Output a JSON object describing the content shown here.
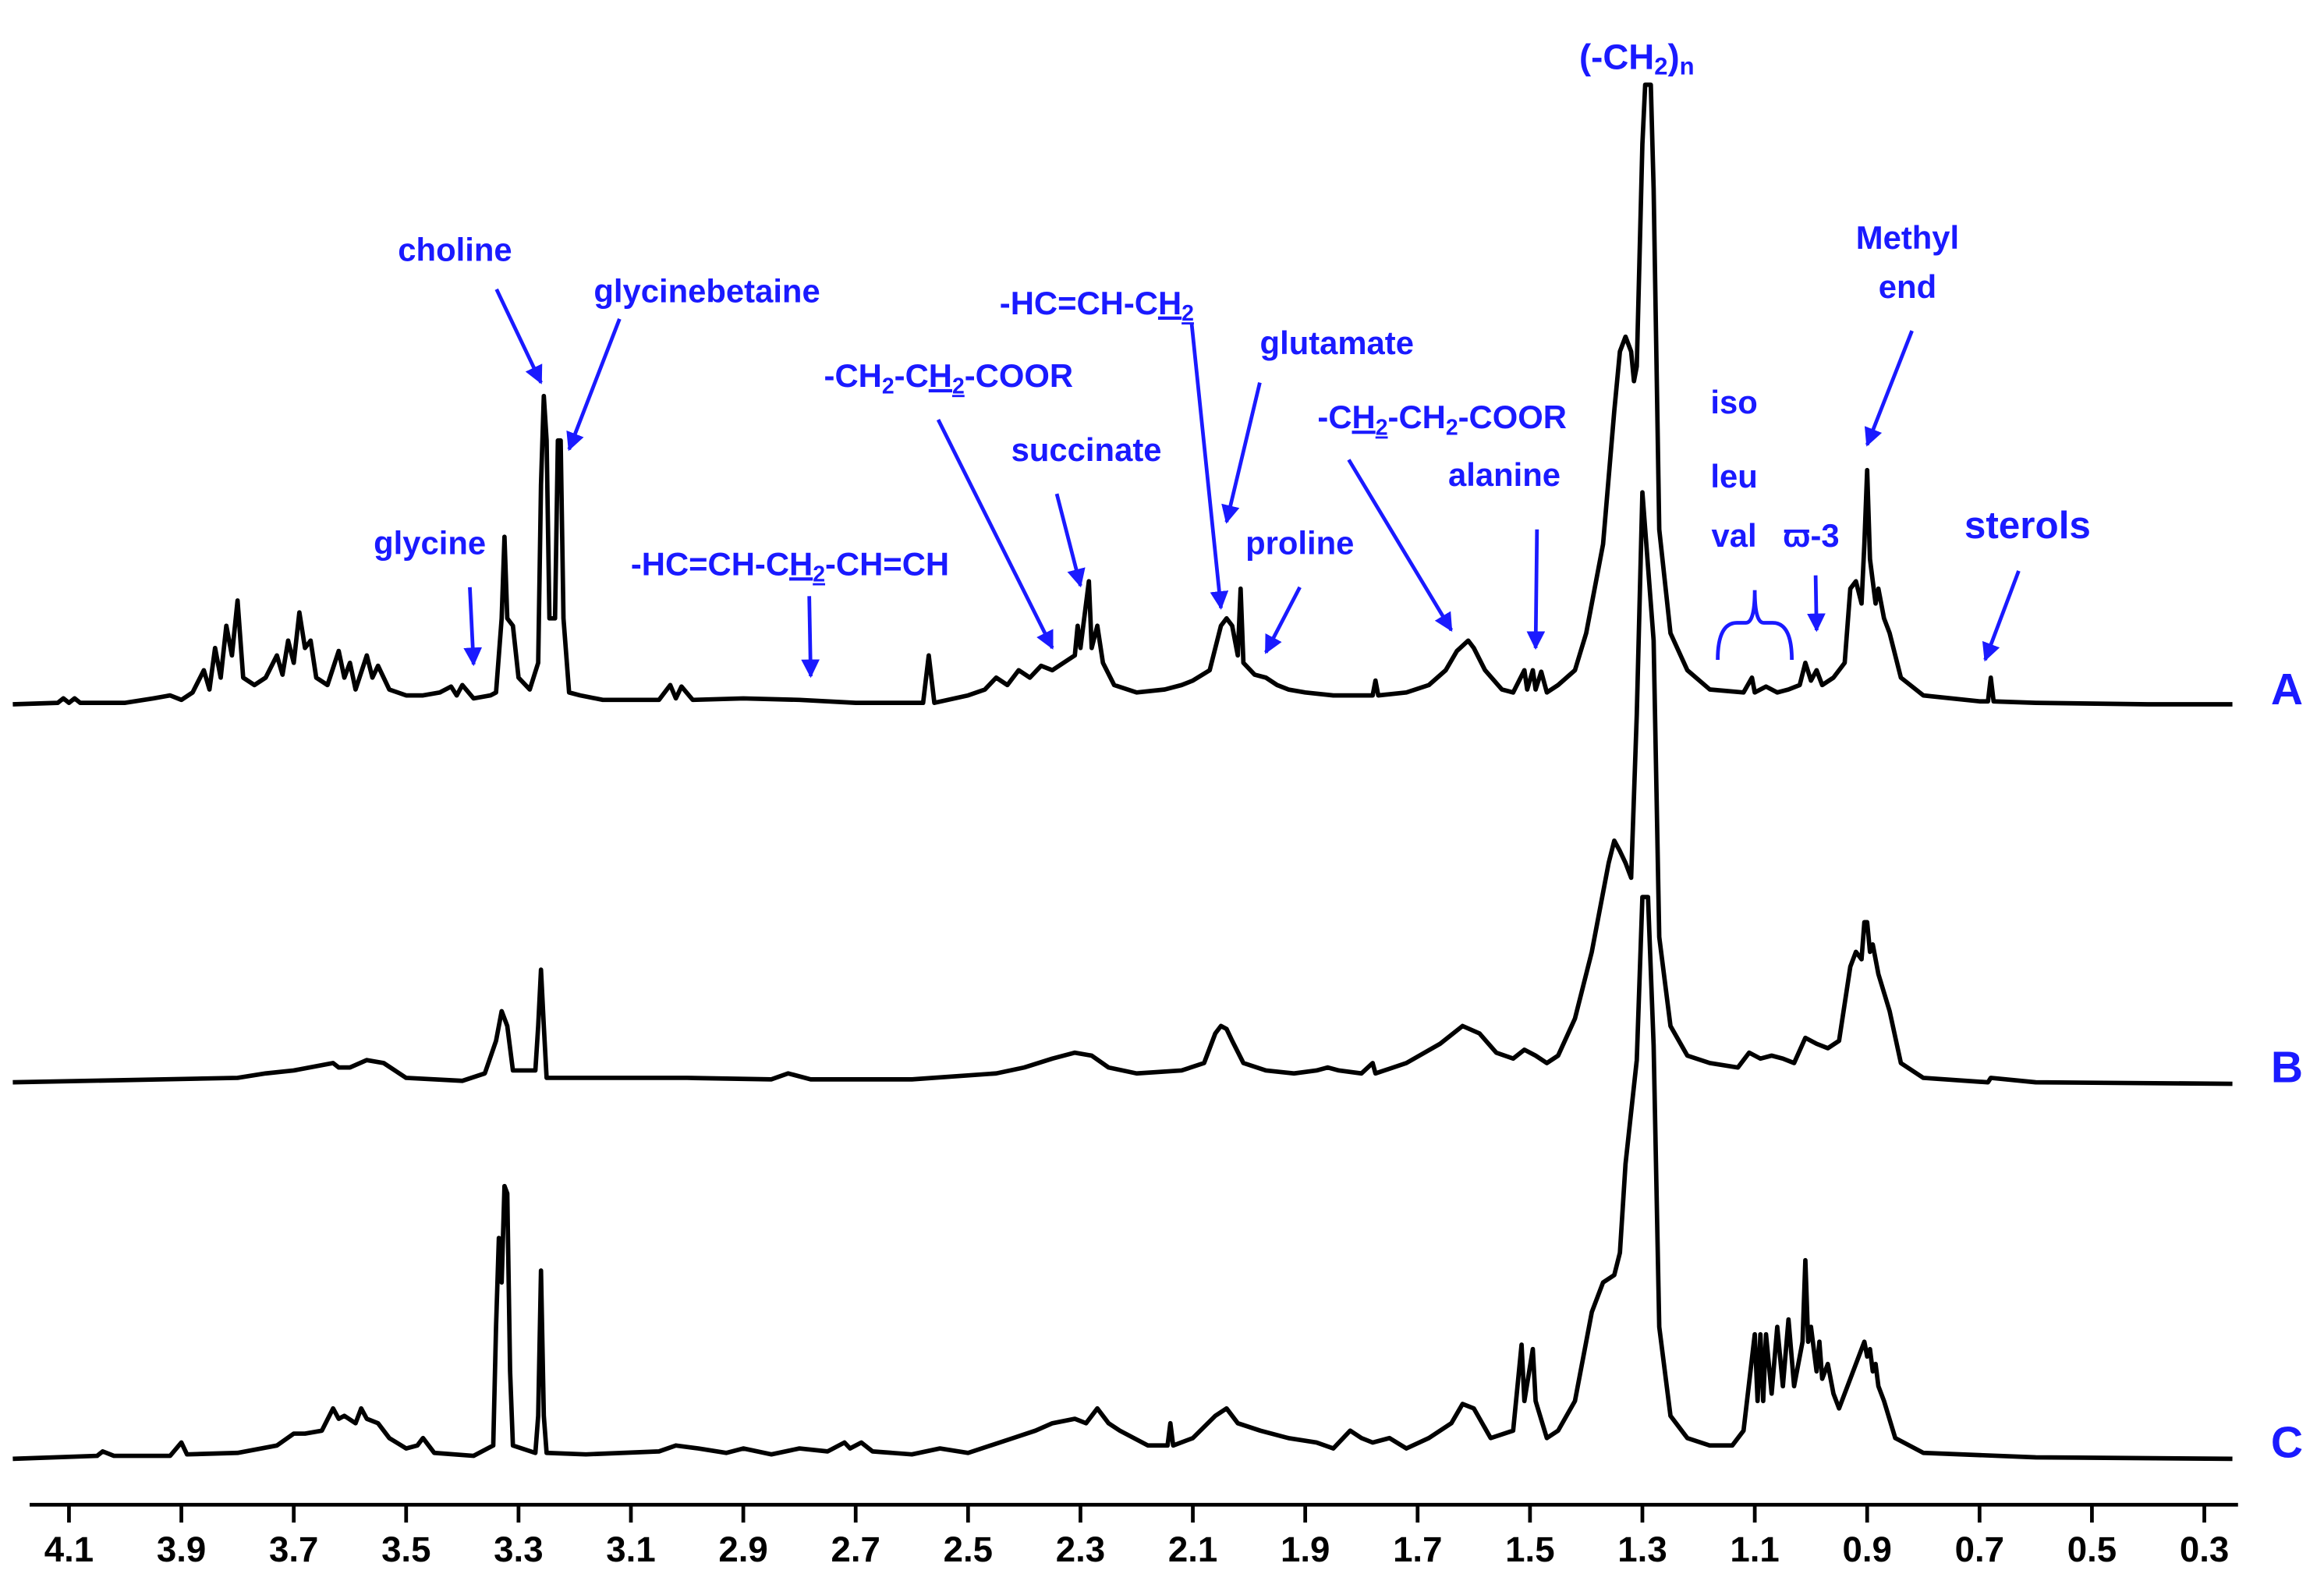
{
  "chart_data": {
    "type": "line",
    "xlim": [
      4.17,
      0.24
    ],
    "xticks": [
      4.1,
      3.9,
      3.7,
      3.5,
      3.3,
      3.1,
      2.9,
      2.7,
      2.5,
      2.3,
      2.1,
      1.9,
      1.7,
      1.5,
      1.3,
      1.1,
      0.9,
      0.7,
      0.5,
      0.3
    ],
    "ylim": [
      0,
      420
    ],
    "grid": false,
    "annotation_color": "#1a1aff",
    "series": [
      {
        "name": "A",
        "color": "#000000",
        "x": [
          4.2,
          4.12,
          4.11,
          4.1,
          4.09,
          4.08,
          4.0,
          3.95,
          3.92,
          3.9,
          3.88,
          3.86,
          3.85,
          3.84,
          3.83,
          3.82,
          3.81,
          3.8,
          3.79,
          3.77,
          3.75,
          3.73,
          3.72,
          3.71,
          3.7,
          3.69,
          3.68,
          3.67,
          3.66,
          3.64,
          3.62,
          3.61,
          3.6,
          3.59,
          3.57,
          3.56,
          3.55,
          3.53,
          3.5,
          3.47,
          3.44,
          3.42,
          3.41,
          3.4,
          3.38,
          3.35,
          3.34,
          3.33,
          3.325,
          3.32,
          3.31,
          3.3,
          3.28,
          3.265,
          3.26,
          3.255,
          3.25,
          3.245,
          3.235,
          3.23,
          3.225,
          3.22,
          3.21,
          3.19,
          3.15,
          3.05,
          3.03,
          3.02,
          3.01,
          2.99,
          2.9,
          2.8,
          2.7,
          2.58,
          2.57,
          2.56,
          2.5,
          2.47,
          2.45,
          2.43,
          2.41,
          2.39,
          2.37,
          2.35,
          2.33,
          2.31,
          2.305,
          2.3,
          2.285,
          2.28,
          2.27,
          2.26,
          2.24,
          2.2,
          2.15,
          2.12,
          2.1,
          2.07,
          2.05,
          2.04,
          2.03,
          2.02,
          2.015,
          2.01,
          1.99,
          1.97,
          1.95,
          1.93,
          1.9,
          1.85,
          1.8,
          1.78,
          1.775,
          1.77,
          1.72,
          1.68,
          1.65,
          1.63,
          1.61,
          1.6,
          1.58,
          1.55,
          1.53,
          1.51,
          1.505,
          1.495,
          1.49,
          1.48,
          1.47,
          1.45,
          1.42,
          1.4,
          1.37,
          1.35,
          1.34,
          1.33,
          1.32,
          1.315,
          1.31,
          1.3,
          1.295,
          1.285,
          1.28,
          1.27,
          1.25,
          1.22,
          1.18,
          1.12,
          1.105,
          1.1,
          1.08,
          1.06,
          1.04,
          1.02,
          1.01,
          1.0,
          0.99,
          0.98,
          0.96,
          0.94,
          0.93,
          0.92,
          0.91,
          0.905,
          0.9,
          0.895,
          0.89,
          0.885,
          0.88,
          0.87,
          0.86,
          0.84,
          0.8,
          0.7,
          0.685,
          0.68,
          0.675,
          0.6,
          0.4,
          0.25
        ],
        "values": [
          2,
          3,
          6,
          3,
          6,
          3,
          3,
          6,
          8,
          5,
          10,
          25,
          12,
          40,
          20,
          55,
          35,
          72,
          20,
          15,
          20,
          35,
          22,
          45,
          30,
          64,
          40,
          45,
          20,
          15,
          38,
          20,
          30,
          12,
          35,
          20,
          28,
          12,
          8,
          8,
          10,
          14,
          8,
          15,
          6,
          8,
          10,
          60,
          115,
          60,
          55,
          20,
          12,
          30,
          150,
          210,
          180,
          60,
          60,
          180,
          180,
          60,
          10,
          8,
          5,
          5,
          15,
          6,
          14,
          5,
          6,
          5,
          3,
          3,
          35,
          3,
          8,
          12,
          20,
          15,
          25,
          20,
          28,
          25,
          30,
          35,
          55,
          40,
          85,
          40,
          55,
          30,
          15,
          10,
          12,
          15,
          18,
          25,
          55,
          60,
          55,
          35,
          80,
          30,
          22,
          20,
          15,
          12,
          10,
          8,
          8,
          8,
          18,
          8,
          10,
          15,
          25,
          38,
          45,
          40,
          25,
          12,
          10,
          25,
          12,
          25,
          12,
          24,
          10,
          15,
          25,
          50,
          110,
          200,
          240,
          250,
          240,
          220,
          230,
          380,
          420,
          420,
          350,
          120,
          50,
          25,
          12,
          10,
          20,
          10,
          14,
          10,
          12,
          15,
          30,
          18,
          25,
          15,
          20,
          30,
          80,
          85,
          70,
          110,
          160,
          100,
          85,
          70,
          80,
          60,
          50,
          20,
          8,
          4,
          4,
          20,
          4,
          3,
          2,
          2
        ]
      },
      {
        "name": "B",
        "color": "#000000",
        "x": [
          4.2,
          3.8,
          3.75,
          3.7,
          3.63,
          3.62,
          3.6,
          3.57,
          3.54,
          3.5,
          3.4,
          3.36,
          3.34,
          3.33,
          3.32,
          3.31,
          3.27,
          3.265,
          3.26,
          3.255,
          3.25,
          3.0,
          2.85,
          2.82,
          2.78,
          2.72,
          2.6,
          2.45,
          2.4,
          2.35,
          2.31,
          2.28,
          2.25,
          2.2,
          2.12,
          2.08,
          2.06,
          2.05,
          2.04,
          2.03,
          2.01,
          1.97,
          1.92,
          1.88,
          1.86,
          1.84,
          1.8,
          1.78,
          1.775,
          1.72,
          1.66,
          1.62,
          1.59,
          1.56,
          1.53,
          1.51,
          1.49,
          1.47,
          1.45,
          1.42,
          1.39,
          1.36,
          1.35,
          1.34,
          1.33,
          1.32,
          1.31,
          1.3,
          1.28,
          1.27,
          1.25,
          1.22,
          1.18,
          1.13,
          1.11,
          1.09,
          1.07,
          1.05,
          1.03,
          1.01,
          0.99,
          0.97,
          0.95,
          0.93,
          0.92,
          0.91,
          0.905,
          0.9,
          0.895,
          0.89,
          0.88,
          0.86,
          0.84,
          0.8,
          0.685,
          0.68,
          0.6,
          0.25
        ],
        "values": [
          2,
          5,
          8,
          10,
          15,
          12,
          12,
          17,
          15,
          5,
          3,
          8,
          30,
          50,
          40,
          10,
          10,
          40,
          78,
          40,
          5,
          5,
          4,
          8,
          4,
          4,
          4,
          8,
          12,
          18,
          22,
          20,
          12,
          8,
          10,
          15,
          35,
          40,
          38,
          30,
          15,
          10,
          8,
          10,
          12,
          10,
          8,
          15,
          8,
          15,
          28,
          40,
          35,
          22,
          18,
          24,
          20,
          15,
          20,
          45,
          90,
          150,
          165,
          158,
          150,
          140,
          250,
          400,
          300,
          100,
          40,
          20,
          15,
          12,
          22,
          18,
          20,
          18,
          15,
          32,
          28,
          25,
          30,
          80,
          90,
          85,
          110,
          110,
          90,
          95,
          75,
          50,
          15,
          5,
          2,
          5,
          2,
          1
        ]
      },
      {
        "name": "C",
        "color": "#000000",
        "x": [
          4.2,
          4.05,
          4.04,
          4.02,
          3.92,
          3.9,
          3.89,
          3.8,
          3.73,
          3.7,
          3.68,
          3.65,
          3.63,
          3.62,
          3.61,
          3.59,
          3.58,
          3.57,
          3.55,
          3.53,
          3.5,
          3.48,
          3.47,
          3.45,
          3.38,
          3.345,
          3.34,
          3.335,
          3.33,
          3.325,
          3.32,
          3.315,
          3.31,
          3.27,
          3.265,
          3.26,
          3.255,
          3.25,
          3.18,
          3.05,
          3.02,
          2.98,
          2.93,
          2.9,
          2.85,
          2.8,
          2.75,
          2.72,
          2.71,
          2.69,
          2.67,
          2.6,
          2.55,
          2.5,
          2.42,
          2.38,
          2.35,
          2.31,
          2.29,
          2.27,
          2.25,
          2.23,
          2.18,
          2.145,
          2.14,
          2.135,
          2.1,
          2.06,
          2.04,
          2.02,
          1.98,
          1.93,
          1.88,
          1.85,
          1.82,
          1.8,
          1.78,
          1.75,
          1.72,
          1.68,
          1.64,
          1.62,
          1.6,
          1.57,
          1.53,
          1.515,
          1.51,
          1.495,
          1.49,
          1.47,
          1.45,
          1.42,
          1.39,
          1.37,
          1.35,
          1.34,
          1.33,
          1.31,
          1.3,
          1.29,
          1.28,
          1.27,
          1.25,
          1.22,
          1.18,
          1.14,
          1.12,
          1.1,
          1.095,
          1.09,
          1.085,
          1.08,
          1.07,
          1.06,
          1.05,
          1.04,
          1.03,
          1.015,
          1.01,
          1.005,
          1.0,
          0.99,
          0.985,
          0.98,
          0.97,
          0.96,
          0.95,
          0.935,
          0.925,
          0.915,
          0.905,
          0.9,
          0.895,
          0.89,
          0.885,
          0.88,
          0.87,
          0.85,
          0.8,
          0.6,
          0.25
        ],
        "values": [
          1,
          3,
          6,
          3,
          3,
          12,
          4,
          5,
          10,
          18,
          18,
          20,
          35,
          28,
          30,
          25,
          35,
          28,
          25,
          15,
          8,
          10,
          15,
          5,
          3,
          10,
          90,
          150,
          120,
          185,
          180,
          60,
          10,
          5,
          30,
          128,
          30,
          5,
          4,
          6,
          10,
          8,
          5,
          8,
          4,
          8,
          6,
          12,
          8,
          12,
          6,
          4,
          8,
          5,
          15,
          20,
          25,
          28,
          25,
          35,
          25,
          20,
          10,
          10,
          25,
          10,
          15,
          30,
          35,
          25,
          20,
          15,
          12,
          8,
          20,
          15,
          12,
          15,
          8,
          15,
          25,
          38,
          35,
          15,
          20,
          78,
          40,
          75,
          40,
          15,
          20,
          40,
          100,
          120,
          125,
          140,
          200,
          270,
          380,
          380,
          280,
          90,
          30,
          15,
          10,
          10,
          20,
          85,
          40,
          85,
          40,
          85,
          45,
          90,
          50,
          95,
          50,
          80,
          135,
          80,
          90,
          60,
          80,
          55,
          65,
          45,
          35,
          50,
          60,
          70,
          80,
          70,
          75,
          60,
          65,
          50,
          40,
          15,
          5,
          2,
          1
        ]
      }
    ],
    "annotations": [
      {
        "lines": [
          [
            {
              "text": "(-CH"
            },
            {
              "text": "2",
              "style": "sub"
            },
            {
              "text": ")"
            },
            {
              "text": "n",
              "style": "sub"
            }
          ]
        ],
        "x": 1.31
      },
      {
        "lines": [
          [
            {
              "text": "choline"
            }
          ]
        ],
        "x": 3.26
      },
      {
        "lines": [
          [
            {
              "text": "glycinebetaine"
            }
          ]
        ],
        "x": 3.21
      },
      {
        "lines": [
          [
            {
              "text": "glycine"
            }
          ]
        ],
        "x": 3.38
      },
      {
        "lines": [
          [
            {
              "text": "-HC=CH-C"
            },
            {
              "text": "H",
              "style": "underline"
            },
            {
              "text": "2",
              "style": "underline-sub"
            },
            {
              "text": "-CH=CH"
            }
          ]
        ],
        "x": 2.78
      },
      {
        "lines": [
          [
            {
              "text": "-CH"
            },
            {
              "text": "2",
              "style": "sub"
            },
            {
              "text": "-C"
            },
            {
              "text": "H",
              "style": "underline"
            },
            {
              "text": "2",
              "style": "underline-sub"
            },
            {
              "text": "-COOR"
            }
          ]
        ],
        "x": 2.35
      },
      {
        "lines": [
          [
            {
              "text": "-HC=CH-C"
            },
            {
              "text": "H",
              "style": "underline"
            },
            {
              "text": "2",
              "style": "underline-sub"
            }
          ]
        ],
        "x": 2.05
      },
      {
        "lines": [
          [
            {
              "text": "succinate"
            }
          ]
        ],
        "x": 2.3
      },
      {
        "lines": [
          [
            {
              "text": "glutamate"
            }
          ]
        ],
        "x": 2.04
      },
      {
        "lines": [
          [
            {
              "text": "proline"
            }
          ]
        ],
        "x": 1.97
      },
      {
        "lines": [
          [
            {
              "text": "-C"
            },
            {
              "text": "H",
              "style": "underline"
            },
            {
              "text": "2",
              "style": "underline-sub"
            },
            {
              "text": "-CH"
            },
            {
              "text": "2",
              "style": "sub"
            },
            {
              "text": "-COOR"
            }
          ]
        ],
        "x": 1.64
      },
      {
        "lines": [
          [
            {
              "text": "alanine"
            }
          ]
        ],
        "x": 1.49
      },
      {
        "lines": [
          [
            {
              "text": "iso"
            }
          ],
          [
            {
              "text": "leu"
            }
          ],
          [
            {
              "text": "val"
            }
          ]
        ],
        "x": 1.1
      },
      {
        "lines": [
          [
            {
              "text": "ϖ-3"
            }
          ]
        ],
        "x": 0.99
      },
      {
        "lines": [
          [
            {
              "text": "Methyl"
            }
          ],
          [
            {
              "text": "end"
            }
          ]
        ],
        "x": 0.9
      },
      {
        "lines": [
          [
            {
              "text": "sterols"
            }
          ]
        ],
        "x": 0.69
      }
    ]
  }
}
